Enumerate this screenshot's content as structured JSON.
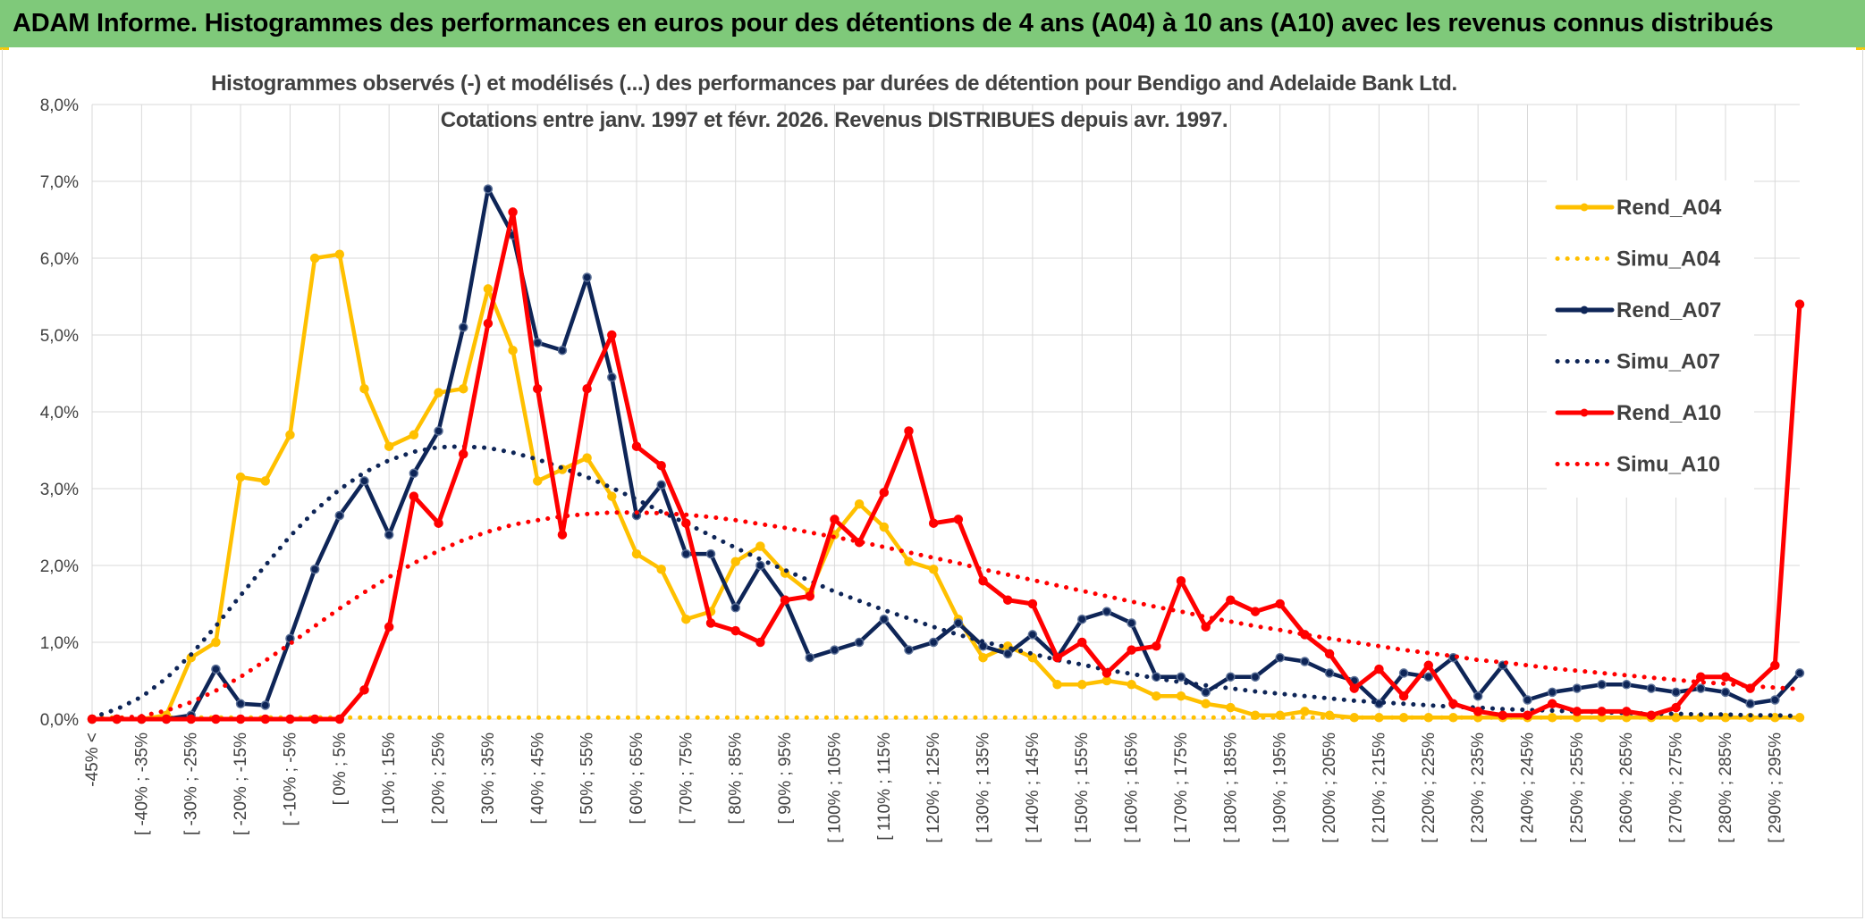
{
  "header": {
    "title": "ADAM Informe. Histogrammes des performances en euros pour des détentions de 4 ans (A04) à 10 ans (A10) avec les revenus connus distribués"
  },
  "colors": {
    "header_bg": "#7fc97a",
    "a04": "#ffc000",
    "a07": "#0e2557",
    "a10": "#ff0000",
    "grid": "#d9d9d9",
    "text": "#404040"
  },
  "chart_data": {
    "type": "line",
    "title": "Histogrammes observés (-) et modélisés (...) des performances par durées de détention pour Bendigo and Adelaide Bank Ltd.",
    "subtitle": "Cotations entre janv. 1997 et févr. 2026. Revenus DISTRIBUES depuis avr. 1997.",
    "xlabel": "",
    "ylabel": "",
    "ylim": [
      0,
      8
    ],
    "y_ticks": [
      "0,0%",
      "1,0%",
      "2,0%",
      "3,0%",
      "4,0%",
      "5,0%",
      "6,0%",
      "7,0%",
      "8,0%"
    ],
    "grid": true,
    "legend_position": "right",
    "x_labels": [
      "-45% <",
      "[ -40% ; -35%",
      "[ -30% ; -25%",
      "[ -20% ; -15%",
      "[ -10% ; -5%",
      "[ 0% ; 5%",
      "[ 10% ; 15%",
      "[ 20% ; 25%",
      "[ 30% ; 35%",
      "[ 40% ; 45%",
      "[ 50% ; 55%",
      "[ 60% ; 65%",
      "[ 70% ; 75%",
      "[ 80% ; 85%",
      "[ 90% ; 95%",
      "[ 100% ; 105%",
      "[ 110% ; 115%",
      "[ 120% ; 125%",
      "[ 130% ; 135%",
      "[ 140% ; 145%",
      "[ 150% ; 155%",
      "[ 160% ; 165%",
      "[ 170% ; 175%",
      "[ 180% ; 185%",
      "[ 190% ; 195%",
      "[ 200% ; 205%",
      "[ 210% ; 215%",
      "[ 220% ; 225%",
      "[ 230% ; 235%",
      "[ 240% ; 245%",
      "[ 250% ; 255%",
      "[ 260% ; 265%",
      "[ 270% ; 275%",
      "[ 280% ; 285%",
      "[ 290% ; 295%"
    ],
    "n_points": 70,
    "series": [
      {
        "name": "Rend_A04",
        "style": "solid",
        "marker": true,
        "color": "#ffc000",
        "values": [
          0,
          0,
          0,
          0.05,
          0.8,
          1.0,
          3.15,
          3.1,
          3.7,
          6.0,
          6.05,
          4.3,
          3.55,
          3.7,
          4.25,
          4.3,
          5.6,
          4.8,
          3.1,
          3.25,
          3.4,
          2.9,
          2.15,
          1.95,
          1.3,
          1.4,
          2.05,
          2.25,
          1.9,
          1.65,
          2.4,
          2.8,
          2.5,
          2.05,
          1.95,
          1.3,
          0.8,
          0.95,
          0.8,
          0.45,
          0.45,
          0.5,
          0.45,
          0.3,
          0.3,
          0.2,
          0.15,
          0.05,
          0.05,
          0.1,
          0.05,
          0.02,
          0.02,
          0.02,
          0.02,
          0.02,
          0.02,
          0.02,
          0.02,
          0.02,
          0.02,
          0.02,
          0.02,
          0.02,
          0.02,
          0.02,
          0.02,
          0.02,
          0.02,
          0.02
        ]
      },
      {
        "name": "Simu_A04",
        "style": "dotted",
        "marker": false,
        "color": "#ffc000",
        "values": [
          0.02,
          0.02,
          0.02,
          0.02,
          0.02,
          0.02,
          0.02,
          0.02,
          0.02,
          0.02,
          0.02,
          0.02,
          0.02,
          0.02,
          0.02,
          0.02,
          0.02,
          0.02,
          0.02,
          0.02,
          0.02,
          0.02,
          0.02,
          0.02,
          0.02,
          0.02,
          0.02,
          0.02,
          0.02,
          0.02,
          0.02,
          0.02,
          0.02,
          0.02,
          0.02,
          0.02,
          0.02,
          0.02,
          0.02,
          0.02,
          0.02,
          0.02,
          0.02,
          0.02,
          0.02,
          0.02,
          0.02,
          0.02,
          0.02,
          0.02,
          0.02,
          0.02,
          0.02,
          0.02,
          0.02,
          0.02,
          0.02,
          0.02,
          0.02,
          0.02,
          0.02,
          0.02,
          0.02,
          0.02,
          0.02,
          0.02,
          0.02,
          0.02,
          0.02,
          0.02
        ]
      },
      {
        "name": "Rend_A07",
        "style": "solid",
        "marker": true,
        "color": "#0e2557",
        "values": [
          0,
          0,
          0,
          0,
          0.05,
          0.65,
          0.2,
          0.18,
          1.05,
          1.95,
          2.65,
          3.1,
          2.4,
          3.2,
          3.75,
          5.1,
          6.9,
          6.3,
          4.9,
          4.8,
          5.75,
          4.45,
          2.65,
          3.05,
          2.15,
          2.15,
          1.45,
          2.0,
          1.55,
          0.8,
          0.9,
          1.0,
          1.3,
          0.9,
          1.0,
          1.25,
          0.95,
          0.85,
          1.1,
          0.8,
          1.3,
          1.4,
          1.25,
          0.55,
          0.55,
          0.35,
          0.55,
          0.55,
          0.8,
          0.75,
          0.6,
          0.5,
          0.2,
          0.6,
          0.55,
          0.8,
          0.3,
          0.7,
          0.25,
          0.35,
          0.4,
          0.45,
          0.45,
          0.4,
          0.35,
          0.4,
          0.35,
          0.2,
          0.25,
          0.6
        ]
      },
      {
        "name": "Simu_A07",
        "style": "dotted",
        "marker": false,
        "color": "#0e2557",
        "values": [
          0.02,
          0.13,
          0.29,
          0.53,
          0.84,
          1.21,
          1.61,
          2.0,
          2.38,
          2.71,
          2.99,
          3.21,
          3.37,
          3.48,
          3.54,
          3.55,
          3.53,
          3.47,
          3.38,
          3.27,
          3.15,
          3.01,
          2.86,
          2.7,
          2.55,
          2.39,
          2.23,
          2.08,
          1.94,
          1.8,
          1.66,
          1.54,
          1.42,
          1.31,
          1.2,
          1.1,
          1.01,
          0.93,
          0.85,
          0.77,
          0.71,
          0.64,
          0.59,
          0.53,
          0.48,
          0.44,
          0.4,
          0.36,
          0.33,
          0.3,
          0.27,
          0.24,
          0.22,
          0.2,
          0.18,
          0.16,
          0.15,
          0.13,
          0.12,
          0.11,
          0.1,
          0.09,
          0.08,
          0.07,
          0.07,
          0.06,
          0.06,
          0.05,
          0.05,
          0.04
        ]
      },
      {
        "name": "Rend_A10",
        "style": "solid",
        "marker": true,
        "color": "#ff0000",
        "values": [
          0,
          0,
          0,
          0,
          0,
          0,
          0,
          0,
          0,
          0,
          0,
          0.38,
          1.2,
          2.9,
          2.55,
          3.45,
          5.15,
          6.6,
          4.3,
          2.4,
          4.3,
          5.0,
          3.55,
          3.3,
          2.55,
          1.25,
          1.15,
          1.0,
          1.55,
          1.6,
          2.6,
          2.3,
          2.95,
          3.75,
          2.55,
          2.6,
          1.8,
          1.55,
          1.5,
          0.8,
          1.0,
          0.6,
          0.9,
          0.95,
          1.8,
          1.2,
          1.55,
          1.4,
          1.5,
          1.1,
          0.85,
          0.4,
          0.65,
          0.3,
          0.7,
          0.2,
          0.1,
          0.05,
          0.05,
          0.2,
          0.1,
          0.1,
          0.1,
          0.05,
          0.15,
          0.55,
          0.55,
          0.4,
          0.7,
          5.4
        ]
      },
      {
        "name": "Simu_A10",
        "style": "dotted",
        "marker": false,
        "color": "#ff0000",
        "values": [
          0.0,
          0.01,
          0.04,
          0.11,
          0.22,
          0.37,
          0.55,
          0.76,
          0.98,
          1.21,
          1.44,
          1.65,
          1.85,
          2.03,
          2.19,
          2.33,
          2.44,
          2.53,
          2.59,
          2.64,
          2.67,
          2.69,
          2.69,
          2.68,
          2.66,
          2.63,
          2.59,
          2.54,
          2.49,
          2.43,
          2.37,
          2.31,
          2.24,
          2.17,
          2.1,
          2.03,
          1.95,
          1.88,
          1.81,
          1.74,
          1.67,
          1.6,
          1.53,
          1.46,
          1.4,
          1.33,
          1.27,
          1.21,
          1.16,
          1.1,
          1.05,
          1.0,
          0.95,
          0.9,
          0.86,
          0.82,
          0.77,
          0.74,
          0.7,
          0.66,
          0.63,
          0.6,
          0.57,
          0.54,
          0.51,
          0.48,
          0.46,
          0.43,
          0.41,
          0.39
        ]
      }
    ]
  }
}
